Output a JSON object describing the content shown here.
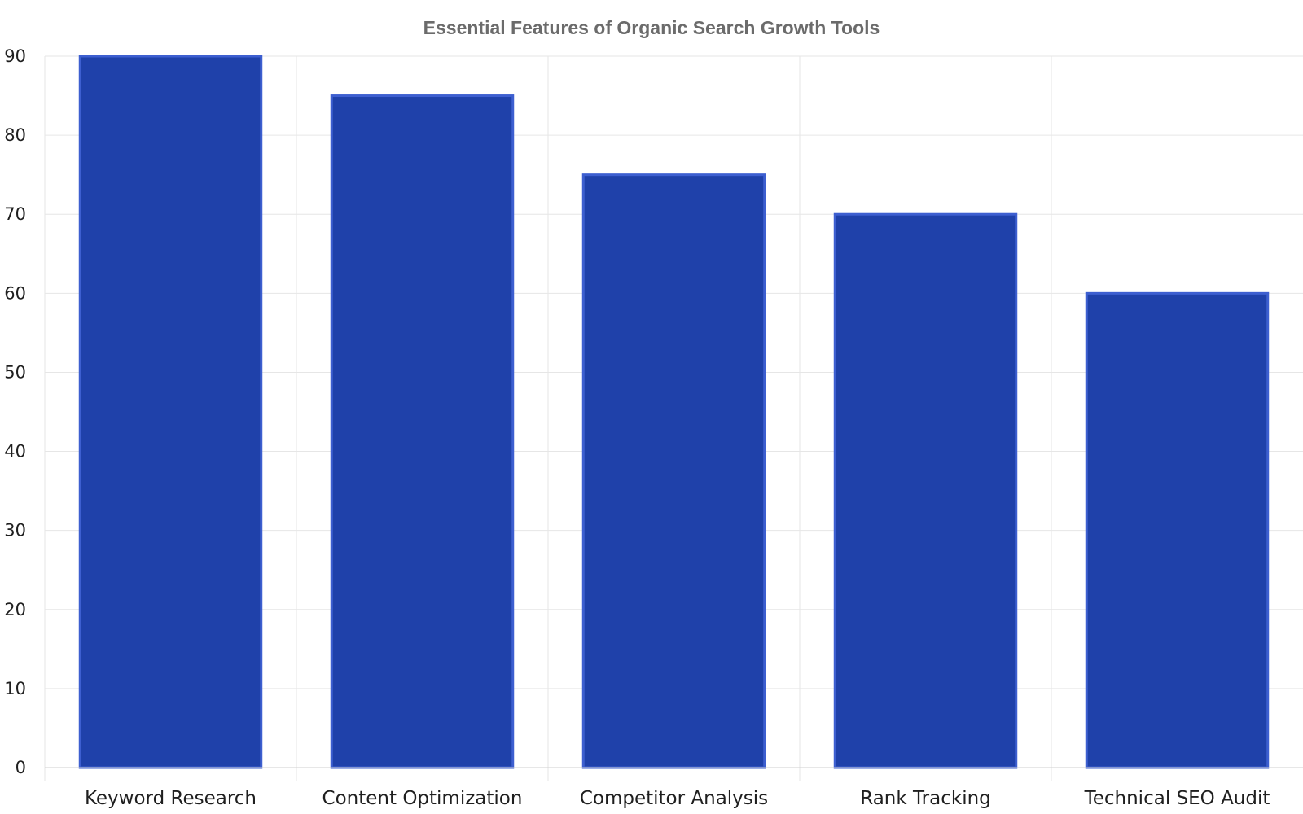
{
  "chart_data": {
    "type": "bar",
    "title": "Essential Features of Organic Search Growth Tools",
    "xlabel": "",
    "ylabel": "",
    "categories": [
      "Keyword Research",
      "Content Optimization",
      "Competitor Analysis",
      "Rank Tracking",
      "Technical SEO Audit"
    ],
    "values": [
      90,
      85,
      75,
      70,
      60
    ],
    "ylim": [
      0,
      90
    ],
    "yticks": [
      0,
      10,
      20,
      30,
      40,
      50,
      60,
      70,
      80,
      90
    ],
    "grid": true,
    "legend": "none",
    "colors": {
      "bar": "#1f41aa",
      "bar_edge": "#3d5fd0"
    }
  }
}
